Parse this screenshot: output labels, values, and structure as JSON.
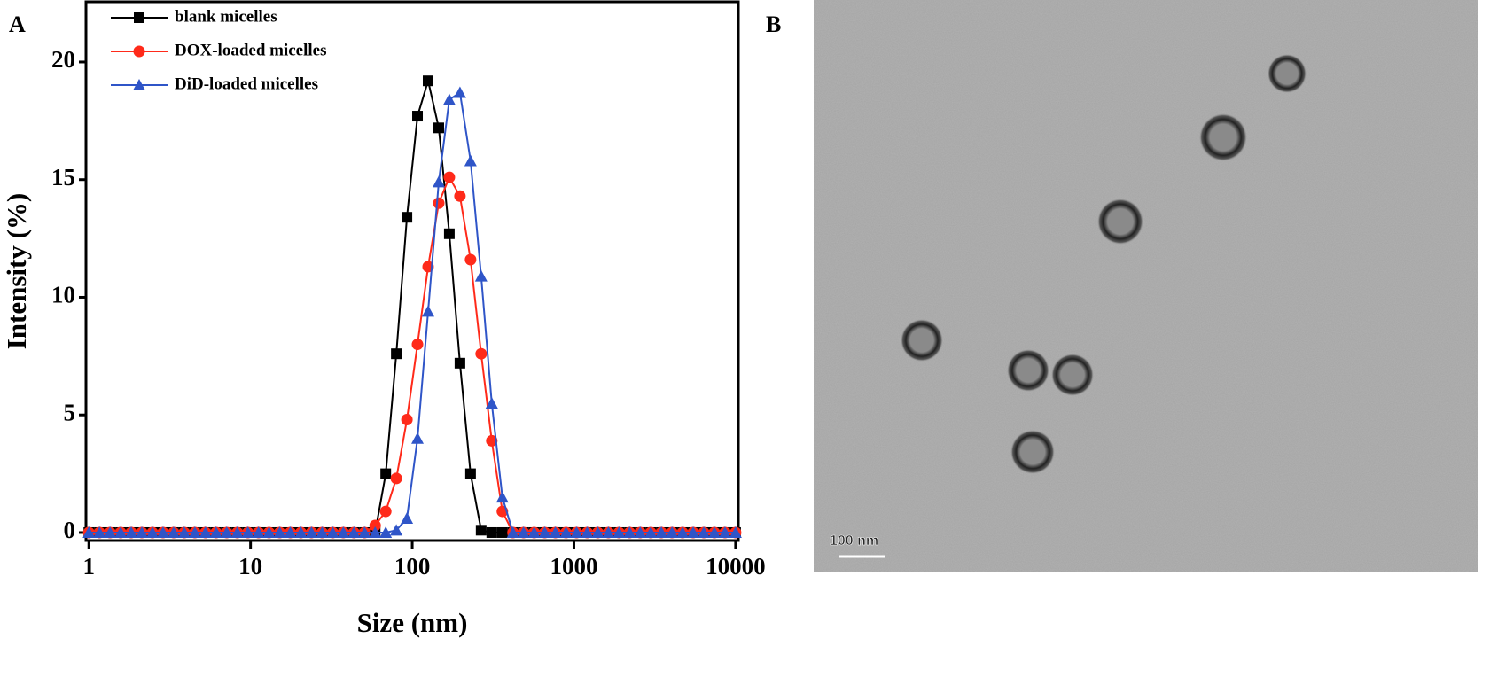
{
  "chart_data": {
    "type": "line",
    "panel_label": "A",
    "xlabel": "Size (nm)",
    "ylabel": "Intensity (%)",
    "xscale": "log",
    "xlim": [
      0.96,
      10400
    ],
    "ylim": [
      -0.34,
      22.56
    ],
    "xticks": [
      1,
      10,
      100,
      1000,
      10000
    ],
    "yticks": [
      0,
      5,
      10,
      15,
      20
    ],
    "legend": "upper left",
    "x": [
      1,
      1.163,
      1.352,
      1.573,
      1.829,
      2.127,
      2.474,
      2.877,
      3.346,
      3.892,
      4.526,
      5.264,
      6.122,
      7.12,
      8.279,
      9.63,
      11.2,
      13.02,
      15.15,
      17.62,
      20.49,
      23.83,
      27.71,
      32.23,
      37.49,
      43.59,
      50.7,
      58.97,
      68.58,
      79.74,
      92.73,
      107.8,
      125.4,
      145.9,
      169.6,
      197.3,
      229.5,
      266.9,
      310.4,
      361,
      419.8,
      488.2,
      567.8,
      660.3,
      767.9,
      893.2,
      1039,
      1208,
      1405,
      1634,
      1900,
      2210,
      2569,
      2988,
      3475,
      4042,
      4700,
      5466,
      6358,
      7394,
      8599,
      10000
    ],
    "series": [
      {
        "name": "blank micelles",
        "color": "#000000",
        "marker": "square",
        "values": [
          0,
          0,
          0,
          0,
          0,
          0,
          0,
          0,
          0,
          0,
          0,
          0,
          0,
          0,
          0,
          0,
          0,
          0,
          0,
          0,
          0,
          0,
          0,
          0,
          0,
          0,
          0,
          0,
          2.5,
          7.6,
          13.4,
          17.7,
          19.2,
          17.2,
          12.7,
          7.2,
          2.5,
          0.1,
          0,
          0,
          0,
          0,
          0,
          0,
          0,
          0,
          0,
          0,
          0,
          0,
          0,
          0,
          0,
          0,
          0,
          0,
          0,
          0,
          0,
          0,
          0,
          0
        ]
      },
      {
        "name": "DOX-loaded micelles",
        "color": "#ff2a1a",
        "marker": "circle",
        "values": [
          0,
          0,
          0,
          0,
          0,
          0,
          0,
          0,
          0,
          0,
          0,
          0,
          0,
          0,
          0,
          0,
          0,
          0,
          0,
          0,
          0,
          0,
          0,
          0,
          0,
          0,
          0,
          0.3,
          0.9,
          2.3,
          4.8,
          8.0,
          11.3,
          14.0,
          15.1,
          14.3,
          11.6,
          7.6,
          3.9,
          0.9,
          0,
          0,
          0,
          0,
          0,
          0,
          0,
          0,
          0,
          0,
          0,
          0,
          0,
          0,
          0,
          0,
          0,
          0,
          0,
          0,
          0,
          0
        ]
      },
      {
        "name": "DiD-loaded micelles",
        "color": "#2f55c8",
        "marker": "triangle",
        "values": [
          0,
          0,
          0,
          0,
          0,
          0,
          0,
          0,
          0,
          0,
          0,
          0,
          0,
          0,
          0,
          0,
          0,
          0,
          0,
          0,
          0,
          0,
          0,
          0,
          0,
          0,
          0,
          0,
          0,
          0.1,
          0.6,
          4.0,
          9.4,
          14.9,
          18.4,
          18.7,
          15.8,
          10.9,
          5.5,
          1.5,
          0,
          0,
          0,
          0,
          0,
          0,
          0,
          0,
          0,
          0,
          0,
          0,
          0,
          0,
          0,
          0,
          0,
          0,
          0,
          0,
          0,
          0
        ]
      }
    ]
  },
  "image_panel": {
    "panel_label": "B",
    "scale_bar_label": "100 nm"
  }
}
